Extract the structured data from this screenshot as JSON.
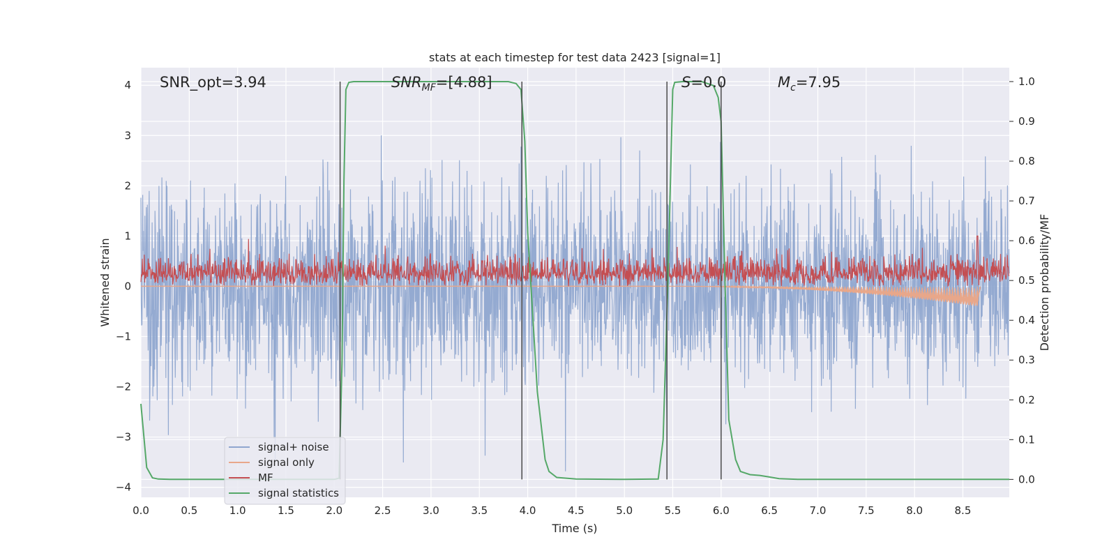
{
  "chart_data": {
    "type": "line",
    "title": "stats at each timestep for test data 2423 [signal=1]",
    "xlabel": "Time (s)",
    "ylabel": "Whitened strain",
    "ylabel_right": "Detection probability/MF",
    "xlim": [
      0,
      8.98
    ],
    "ylim": [
      -4.2,
      4.35
    ],
    "ylim_right": [
      -0.045,
      1.035
    ],
    "x_ticks": [
      "0.0",
      "0.5",
      "1.0",
      "1.5",
      "2.0",
      "2.5",
      "3.0",
      "3.5",
      "4.0",
      "4.5",
      "5.0",
      "5.5",
      "6.0",
      "6.5",
      "7.0",
      "7.5",
      "8.0",
      "8.5"
    ],
    "y_ticks": [
      "4",
      "3",
      "2",
      "1",
      "0",
      "−1",
      "−2",
      "−3",
      "−4"
    ],
    "y_ticks_right": [
      "1.0",
      "0.9",
      "0.8",
      "0.7",
      "0.6",
      "0.5",
      "0.4",
      "0.3",
      "0.2",
      "0.1",
      "0.0"
    ],
    "grid": true,
    "legend_position": "lower-left",
    "annotations": {
      "snr_opt": "SNR_opt=3.94",
      "snr_mf_main": "SNR",
      "snr_mf_sub": "MF",
      "snr_mf_suffix": "=[4.88]",
      "s_main": "S",
      "s_suffix": "=0.0",
      "mc_main": "M",
      "mc_sub": "c",
      "mc_suffix": "=7.95"
    },
    "vertical_lines": [
      2.06,
      3.94,
      5.44,
      6.0
    ],
    "series": [
      {
        "name": "signal+ noise",
        "color": "#8fa6cf",
        "kind": "noise",
        "amplitude_std": 1.0,
        "x_range": [
          0,
          8.98
        ]
      },
      {
        "name": "signal only",
        "color": "#e8a78a",
        "kind": "chirp",
        "peak_x": 8.65,
        "peak_amplitude": 0.4,
        "x_range": [
          5.4,
          8.68
        ]
      },
      {
        "name": "MF",
        "color": "#c44e52",
        "kind": "mf",
        "baseline": 0.25,
        "spread": 0.18,
        "peak_x": 8.65,
        "peak_y": 1.0
      },
      {
        "name": "signal statistics",
        "color": "#55a868",
        "axis": "right",
        "x": [
          0.0,
          0.06,
          0.12,
          0.18,
          0.3,
          0.6,
          1.0,
          1.5,
          2.0,
          2.05,
          2.08,
          2.1,
          2.12,
          2.15,
          2.2,
          2.5,
          3.0,
          3.5,
          3.8,
          3.88,
          3.93,
          3.97,
          4.0,
          4.1,
          4.18,
          4.22,
          4.3,
          4.5,
          5.0,
          5.35,
          5.4,
          5.45,
          5.5,
          5.52,
          5.6,
          5.8,
          5.92,
          5.97,
          6.0,
          6.04,
          6.08,
          6.15,
          6.2,
          6.3,
          6.4,
          6.5,
          6.6,
          6.8,
          7.5,
          8.5,
          8.98
        ],
        "y": [
          0.19,
          0.03,
          0.004,
          0.001,
          0.0,
          0.0,
          0.0,
          0.0,
          0.0,
          0.003,
          0.3,
          0.75,
          0.98,
          0.998,
          1.0,
          1.0,
          1.0,
          1.0,
          1.0,
          0.995,
          0.98,
          0.85,
          0.62,
          0.22,
          0.05,
          0.02,
          0.005,
          0.001,
          0.0,
          0.001,
          0.1,
          0.5,
          0.98,
          0.998,
          1.0,
          1.0,
          0.99,
          0.96,
          0.9,
          0.5,
          0.15,
          0.05,
          0.02,
          0.012,
          0.01,
          0.006,
          0.002,
          0.0,
          0.0,
          0.0,
          0.0
        ]
      }
    ]
  }
}
